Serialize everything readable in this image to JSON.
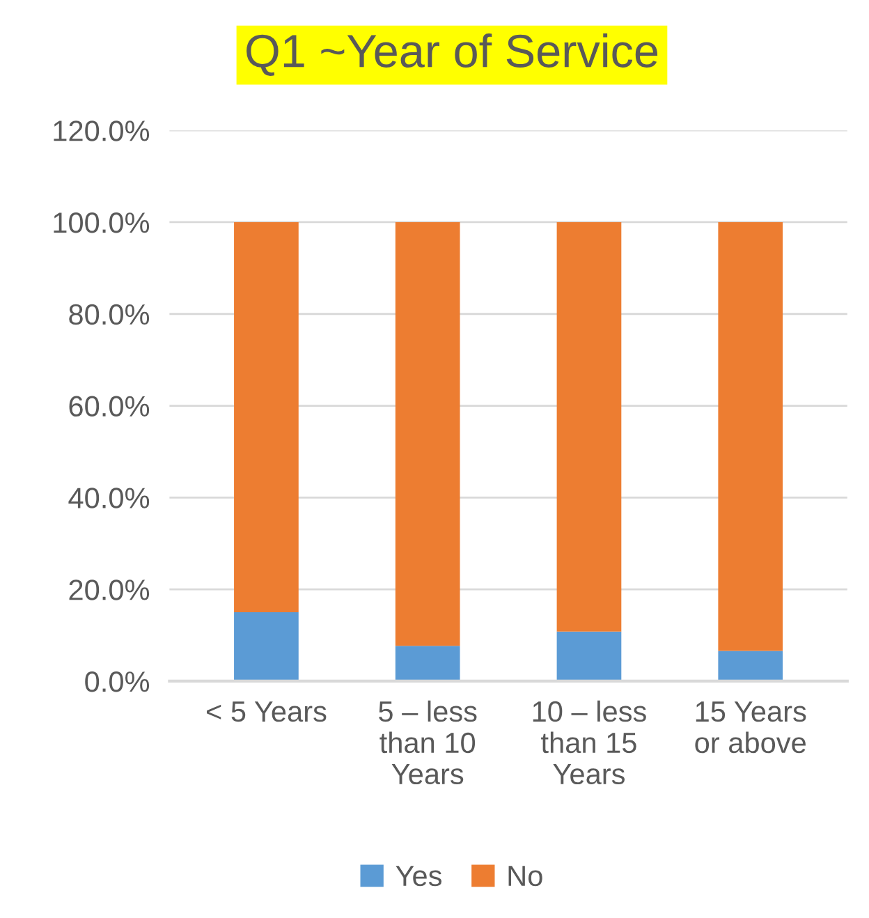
{
  "chart_data": {
    "type": "bar",
    "title": "Q1 ~Year of Service",
    "stacked": true,
    "categories": [
      "< 5 Years",
      "5 – less\nthan 10\nYears",
      "10 – less\nthan 15\nYears",
      "15 Years\nor above"
    ],
    "series": [
      {
        "name": "Yes",
        "color": "#5b9bd5",
        "values": [
          15.0,
          7.7,
          10.8,
          6.6
        ]
      },
      {
        "name": "No",
        "color": "#ed7d31",
        "values": [
          85.0,
          92.3,
          89.2,
          93.4
        ]
      }
    ],
    "ylim": [
      0,
      120
    ],
    "yticks": [
      {
        "value": 0,
        "label": "0.0%"
      },
      {
        "value": 20,
        "label": "20.0%"
      },
      {
        "value": 40,
        "label": "40.0%"
      },
      {
        "value": 60,
        "label": "60.0%"
      },
      {
        "value": 80,
        "label": "80.0%"
      },
      {
        "value": 100,
        "label": "100.0%"
      },
      {
        "value": 120,
        "label": "120.0%"
      }
    ],
    "grid": "y",
    "legend": "bottom"
  }
}
